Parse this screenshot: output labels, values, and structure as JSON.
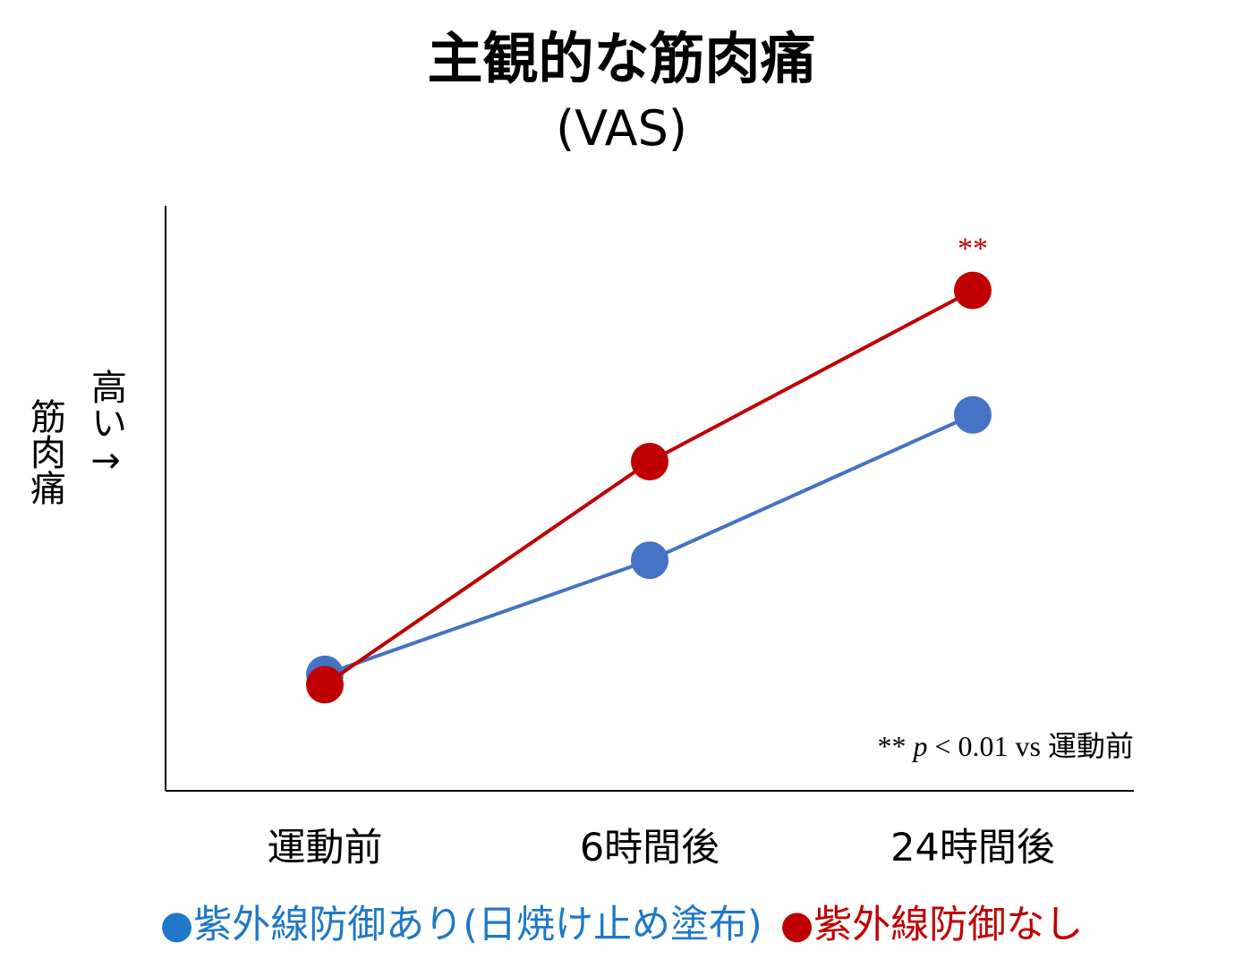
{
  "chart_data": {
    "type": "line",
    "title": "主観的な筋肉痛",
    "subtitle": "(VAS)",
    "ylabel": "筋肉痛",
    "ylabel_direction": "高い→",
    "xlabel": "",
    "categories": [
      "運動前",
      "6時間後",
      "24時間後"
    ],
    "ylim": [
      0,
      10
    ],
    "y_ticks_shown": false,
    "grid": false,
    "legend_position": "bottom",
    "series": [
      {
        "name": "●紫外線防御あり(日焼け止め塗布)",
        "color": "#4472C4",
        "legend_color": "#1F78C8",
        "values": [
          1.4,
          3.6,
          6.4
        ]
      },
      {
        "name": "●紫外線防御なし",
        "color": "#C00000",
        "legend_color": "#C00000",
        "values": [
          1.2,
          5.5,
          8.8
        ]
      }
    ],
    "annotations": [
      {
        "text": "**",
        "category": "24時間後",
        "series": 1,
        "color": "#C00000"
      }
    ],
    "footnote": {
      "stars": "**",
      "p": "p",
      "rest": "< 0.01 vs",
      "ref": "運動前"
    }
  }
}
